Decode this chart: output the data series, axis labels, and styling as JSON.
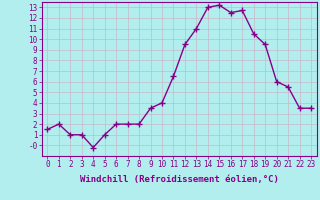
{
  "x": [
    0,
    1,
    2,
    3,
    4,
    5,
    6,
    7,
    8,
    9,
    10,
    11,
    12,
    13,
    14,
    15,
    16,
    17,
    18,
    19,
    20,
    21,
    22,
    23
  ],
  "y": [
    1.5,
    2.0,
    1.0,
    1.0,
    -0.2,
    1.0,
    2.0,
    2.0,
    2.0,
    3.5,
    4.0,
    6.5,
    9.5,
    11.0,
    13.0,
    13.2,
    12.5,
    12.7,
    10.5,
    9.5,
    6.0,
    5.5,
    3.5,
    3.5
  ],
  "line_color": "#880088",
  "marker": "+",
  "marker_size": 4,
  "marker_linewidth": 1.0,
  "background_color": "#b2eeee",
  "grid_color": "#c8b8c8",
  "xlabel": "Windchill (Refroidissement éolien,°C)",
  "ylabel": "",
  "title": "",
  "xlim": [
    -0.5,
    23.5
  ],
  "ylim": [
    -1.0,
    13.5
  ],
  "yticks": [
    0,
    1,
    2,
    3,
    4,
    5,
    6,
    7,
    8,
    9,
    10,
    11,
    12,
    13
  ],
  "ytick_labels": [
    "-0",
    "1",
    "2",
    "3",
    "4",
    "5",
    "6",
    "7",
    "8",
    "9",
    "10",
    "11",
    "12",
    "13"
  ],
  "xticks": [
    0,
    1,
    2,
    3,
    4,
    5,
    6,
    7,
    8,
    9,
    10,
    11,
    12,
    13,
    14,
    15,
    16,
    17,
    18,
    19,
    20,
    21,
    22,
    23
  ],
  "tick_fontsize": 5.5,
  "label_fontsize": 6.5,
  "axis_color": "#880088",
  "spine_color": "#880088",
  "linewidth": 1.0
}
